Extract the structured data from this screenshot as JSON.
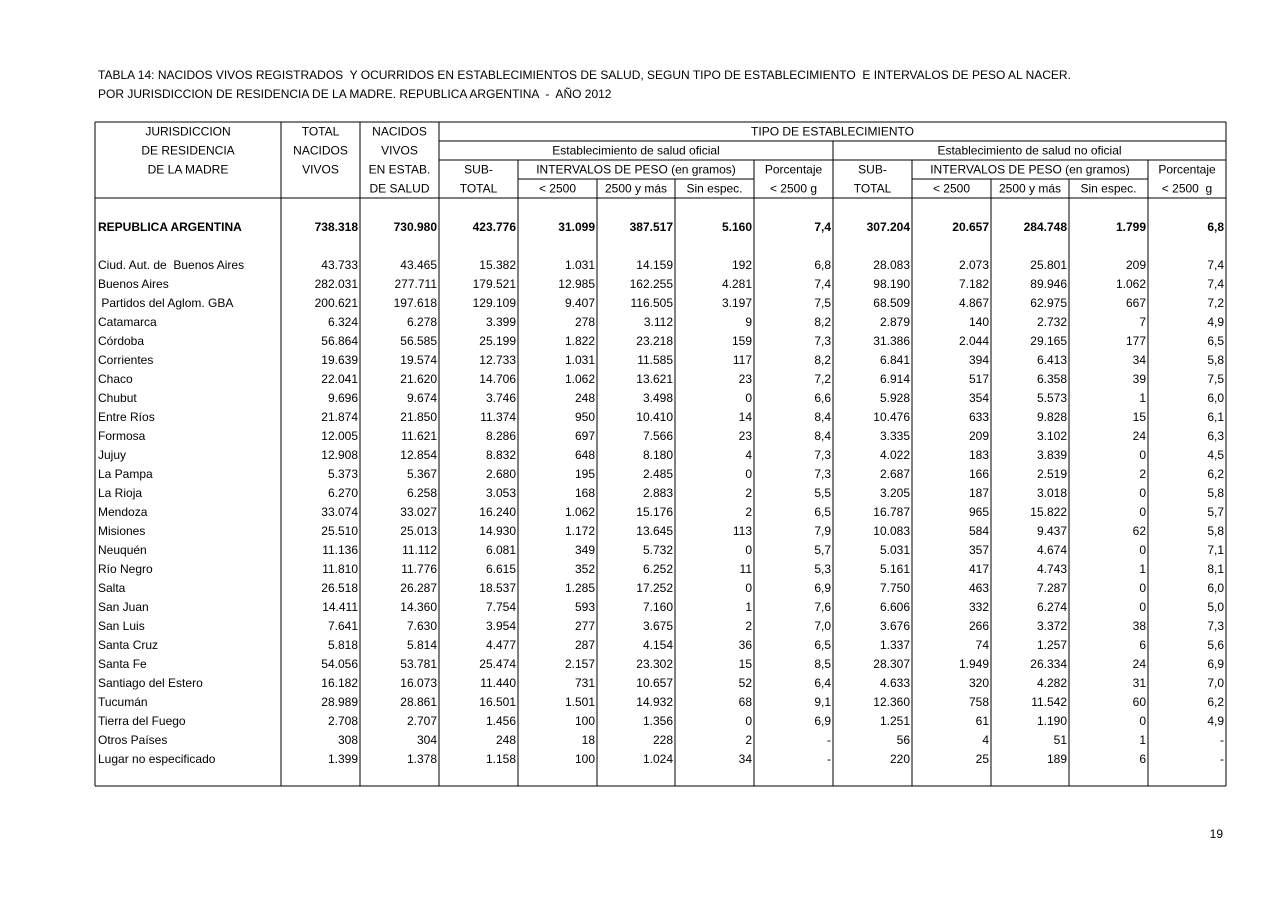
{
  "title": [
    "TABLA 14: NACIDOS VIVOS REGISTRADOS  Y OCURRIDOS EN ESTABLECIMIENTOS DE SALUD, SEGUN TIPO DE ESTABLECIMIENTO  E INTERVALOS DE PESO AL NACER.",
    "POR JURISDICCION DE RESIDENCIA DE LA MADRE. REPUBLICA ARGENTINA  -  AÑO 2012"
  ],
  "table": {
    "header": {
      "jurisdiccion": [
        "JURISDICCION",
        "DE RESIDENCIA",
        "DE LA MADRE"
      ],
      "total": [
        "TOTAL",
        "NACIDOS",
        "VIVOS"
      ],
      "nacidos": [
        "NACIDOS",
        "VIVOS",
        "EN ESTAB.",
        "DE SALUD"
      ],
      "tipo": "TIPO DE ESTABLECIMIENTO",
      "groups": [
        {
          "name": "Establecimiento de salud oficial",
          "subtotal": [
            "SUB-",
            "TOTAL"
          ],
          "intervalos": "INTERVALOS DE PESO (en gramos)",
          "bins": [
            "< 2500",
            "2500 y más",
            "Sin espec."
          ],
          "porcentaje": [
            "Porcentaje",
            "< 2500 g"
          ]
        },
        {
          "name": "Establecimiento de salud no oficial",
          "subtotal": [
            "SUB-",
            "TOTAL"
          ],
          "intervalos": "INTERVALOS DE PESO (en gramos)",
          "bins": [
            "< 2500",
            "2500 y más",
            "Sin espec."
          ],
          "porcentaje": [
            "Porcentaje",
            "< 2500  g"
          ]
        }
      ]
    },
    "total_row": [
      "REPUBLICA ARGENTINA",
      "738.318",
      "730.980",
      "423.776",
      "31.099",
      "387.517",
      "5.160",
      "7,4",
      "307.204",
      "20.657",
      "284.748",
      "1.799",
      "6,8"
    ],
    "rows": [
      [
        "Ciud. Aut. de  Buenos Aires",
        "43.733",
        "43.465",
        "15.382",
        "1.031",
        "14.159",
        "192",
        "6,8",
        "28.083",
        "2.073",
        "25.801",
        "209",
        "7,4"
      ],
      [
        "Buenos Aires",
        "282.031",
        "277.711",
        "179.521",
        "12.985",
        "162.255",
        "4.281",
        "7,4",
        "98.190",
        "7.182",
        "89.946",
        "1.062",
        "7,4"
      ],
      [
        " Partidos del Aglom. GBA",
        "200.621",
        "197.618",
        "129.109",
        "9.407",
        "116.505",
        "3.197",
        "7,5",
        "68.509",
        "4.867",
        "62.975",
        "667",
        "7,2"
      ],
      [
        "Catamarca",
        "6.324",
        "6.278",
        "3.399",
        "278",
        "3.112",
        "9",
        "8,2",
        "2.879",
        "140",
        "2.732",
        "7",
        "4,9"
      ],
      [
        "Córdoba",
        "56.864",
        "56.585",
        "25.199",
        "1.822",
        "23.218",
        "159",
        "7,3",
        "31.386",
        "2.044",
        "29.165",
        "177",
        "6,5"
      ],
      [
        "Corrientes",
        "19.639",
        "19.574",
        "12.733",
        "1.031",
        "11.585",
        "117",
        "8,2",
        "6.841",
        "394",
        "6.413",
        "34",
        "5,8"
      ],
      [
        "Chaco",
        "22.041",
        "21.620",
        "14.706",
        "1.062",
        "13.621",
        "23",
        "7,2",
        "6.914",
        "517",
        "6.358",
        "39",
        "7,5"
      ],
      [
        "Chubut",
        "9.696",
        "9.674",
        "3.746",
        "248",
        "3.498",
        "0",
        "6,6",
        "5.928",
        "354",
        "5.573",
        "1",
        "6,0"
      ],
      [
        "Entre Ríos",
        "21.874",
        "21.850",
        "11.374",
        "950",
        "10.410",
        "14",
        "8,4",
        "10.476",
        "633",
        "9.828",
        "15",
        "6,1"
      ],
      [
        "Formosa",
        "12.005",
        "11.621",
        "8.286",
        "697",
        "7.566",
        "23",
        "8,4",
        "3.335",
        "209",
        "3.102",
        "24",
        "6,3"
      ],
      [
        "Jujuy",
        "12.908",
        "12.854",
        "8.832",
        "648",
        "8.180",
        "4",
        "7,3",
        "4.022",
        "183",
        "3.839",
        "0",
        "4,5"
      ],
      [
        "La Pampa",
        "5.373",
        "5.367",
        "2.680",
        "195",
        "2.485",
        "0",
        "7,3",
        "2.687",
        "166",
        "2.519",
        "2",
        "6,2"
      ],
      [
        "La Rioja",
        "6.270",
        "6.258",
        "3.053",
        "168",
        "2.883",
        "2",
        "5,5",
        "3.205",
        "187",
        "3.018",
        "0",
        "5,8"
      ],
      [
        "Mendoza",
        "33.074",
        "33.027",
        "16.240",
        "1.062",
        "15.176",
        "2",
        "6,5",
        "16.787",
        "965",
        "15.822",
        "0",
        "5,7"
      ],
      [
        "Misiones",
        "25.510",
        "25.013",
        "14.930",
        "1.172",
        "13.645",
        "113",
        "7,9",
        "10.083",
        "584",
        "9.437",
        "62",
        "5,8"
      ],
      [
        "Neuquén",
        "11.136",
        "11.112",
        "6.081",
        "349",
        "5.732",
        "0",
        "5,7",
        "5.031",
        "357",
        "4.674",
        "0",
        "7,1"
      ],
      [
        "Río Negro",
        "11.810",
        "11.776",
        "6.615",
        "352",
        "6.252",
        "11",
        "5,3",
        "5.161",
        "417",
        "4.743",
        "1",
        "8,1"
      ],
      [
        "Salta",
        "26.518",
        "26.287",
        "18.537",
        "1.285",
        "17.252",
        "0",
        "6,9",
        "7.750",
        "463",
        "7.287",
        "0",
        "6,0"
      ],
      [
        "San Juan",
        "14.411",
        "14.360",
        "7.754",
        "593",
        "7.160",
        "1",
        "7,6",
        "6.606",
        "332",
        "6.274",
        "0",
        "5,0"
      ],
      [
        "San Luis",
        "7.641",
        "7.630",
        "3.954",
        "277",
        "3.675",
        "2",
        "7,0",
        "3.676",
        "266",
        "3.372",
        "38",
        "7,3"
      ],
      [
        "Santa Cruz",
        "5.818",
        "5.814",
        "4.477",
        "287",
        "4.154",
        "36",
        "6,5",
        "1.337",
        "74",
        "1.257",
        "6",
        "5,6"
      ],
      [
        "Santa Fe",
        "54.056",
        "53.781",
        "25.474",
        "2.157",
        "23.302",
        "15",
        "8,5",
        "28.307",
        "1.949",
        "26.334",
        "24",
        "6,9"
      ],
      [
        "Santiago del Estero",
        "16.182",
        "16.073",
        "11.440",
        "731",
        "10.657",
        "52",
        "6,4",
        "4.633",
        "320",
        "4.282",
        "31",
        "7,0"
      ],
      [
        "Tucumán",
        "28.989",
        "28.861",
        "16.501",
        "1.501",
        "14.932",
        "68",
        "9,1",
        "12.360",
        "758",
        "11.542",
        "60",
        "6,2"
      ],
      [
        "Tierra del Fuego",
        "2.708",
        "2.707",
        "1.456",
        "100",
        "1.356",
        "0",
        "6,9",
        "1.251",
        "61",
        "1.190",
        "0",
        "4,9"
      ],
      [
        "Otros Países",
        "308",
        "304",
        "248",
        "18",
        "228",
        "2",
        "-",
        "56",
        "4",
        "51",
        "1",
        "-"
      ],
      [
        "Lugar no especificado",
        "1.399",
        "1.378",
        "1.158",
        "100",
        "1.024",
        "34",
        "-",
        "220",
        "25",
        "189",
        "6",
        "-"
      ]
    ]
  },
  "page_number": "19"
}
